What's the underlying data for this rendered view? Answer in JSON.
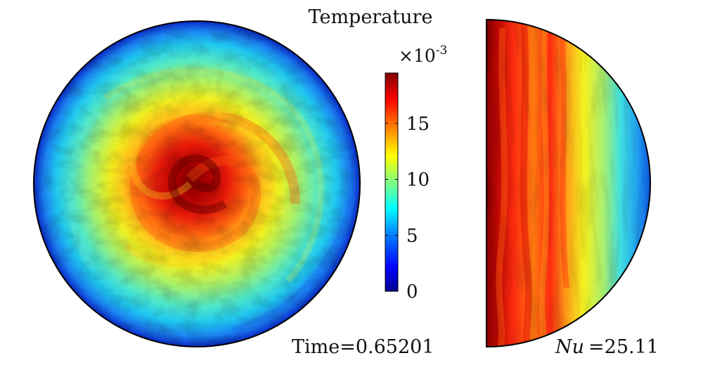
{
  "colorbar": {
    "title": "Temperature",
    "multiplier_base": "×10",
    "multiplier_exp": "-3",
    "ticks": [
      "0",
      "5",
      "10",
      "15"
    ],
    "tick_values": [
      0,
      5,
      10,
      15
    ],
    "range": [
      0,
      19.5
    ],
    "colormap": [
      "#00008f",
      "#0000ff",
      "#0080ff",
      "#00ffff",
      "#80ff80",
      "#ffff00",
      "#ff8000",
      "#ff0000",
      "#800000"
    ]
  },
  "left_panel": {
    "view": "horizontal cross-section",
    "annotation": "Time=0.65201"
  },
  "right_panel": {
    "view": "meridional half-section",
    "annotation_symbol": "Nu",
    "annotation_value": "=25.11"
  }
}
